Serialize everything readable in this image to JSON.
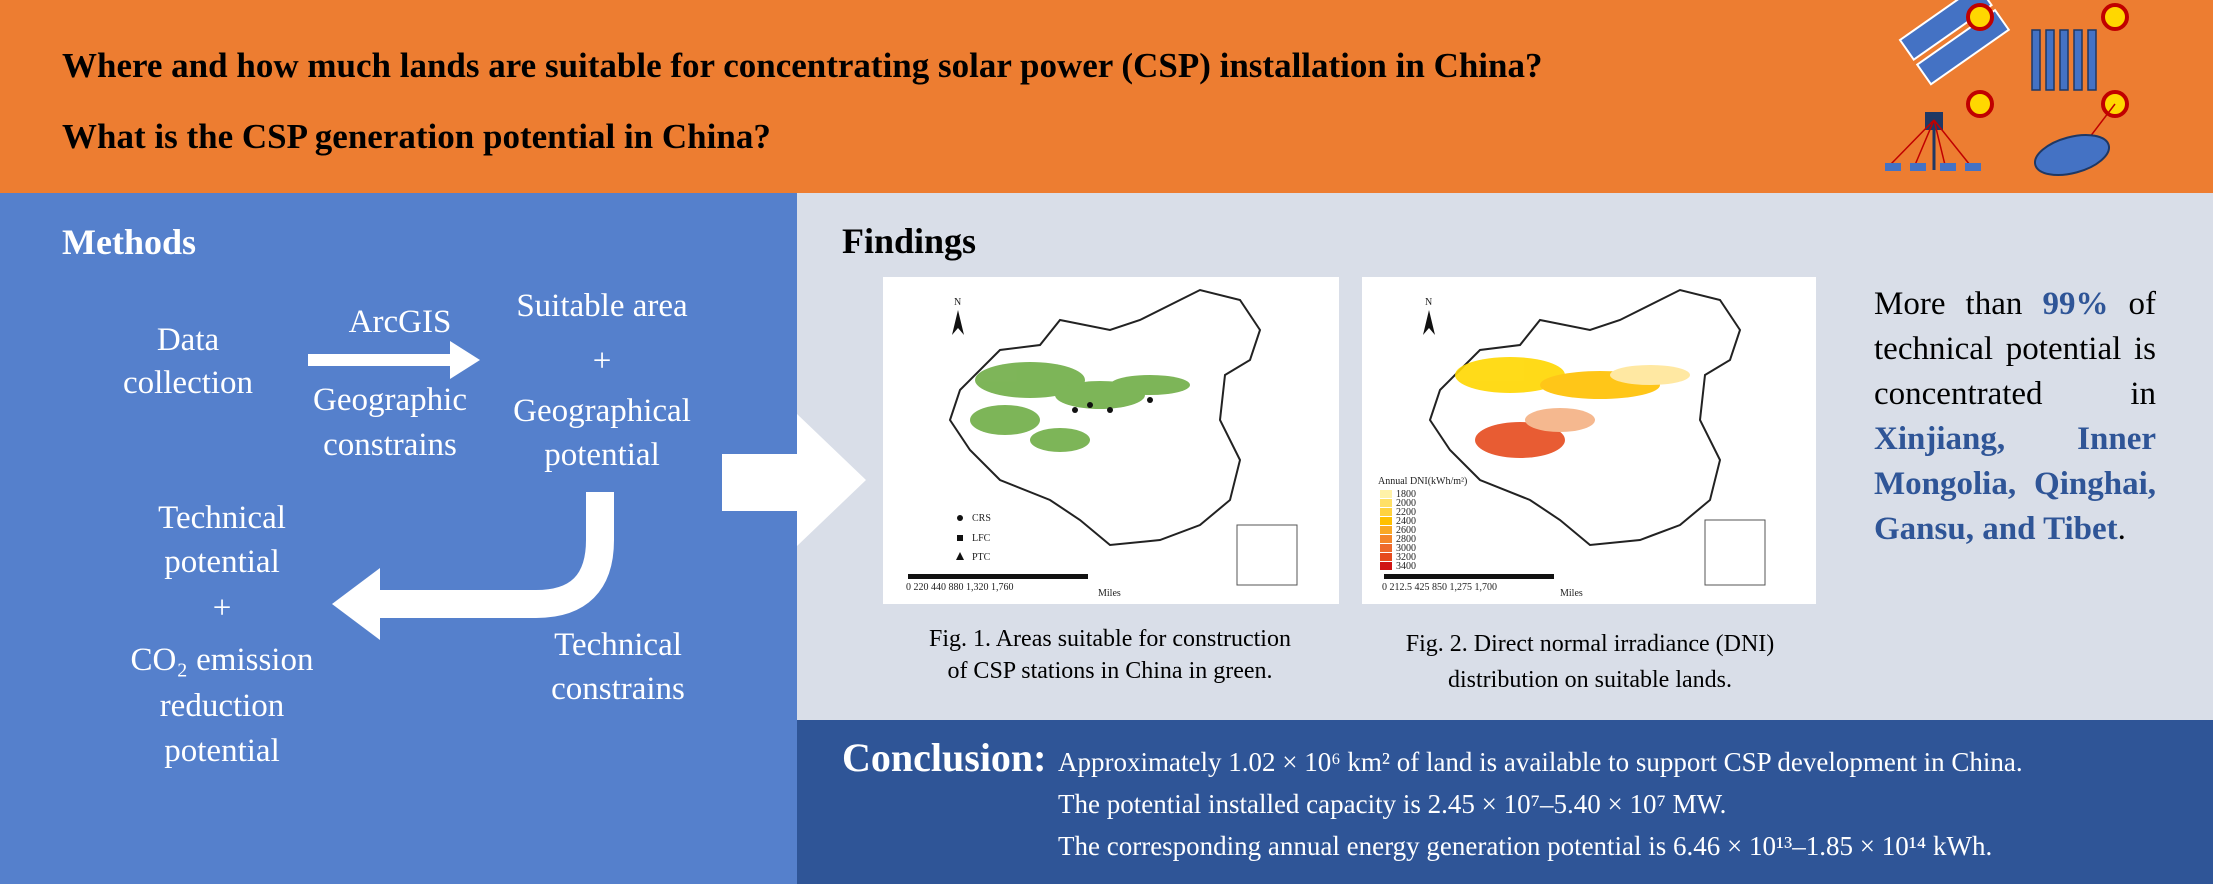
{
  "header": {
    "questions": [
      "Where and how much lands are suitable for concentrating solar power (CSP) installation in China?",
      "What is the CSP generation potential in China?"
    ]
  },
  "methods": {
    "title": "Methods",
    "data_collection": [
      "Data",
      "collection"
    ],
    "arcgis": "ArcGIS",
    "geographic_constrains": [
      "Geographic",
      "constrains"
    ],
    "suitable_area": "Suitable area",
    "plus_1": "+",
    "geographical_potential": [
      "Geographical",
      "potential"
    ],
    "technical_constrains": [
      "Technical",
      "constrains"
    ],
    "technical_potential": [
      "Technical",
      "potential"
    ],
    "plus_2": "+",
    "co2_potential": [
      "CO₂ emission",
      "reduction",
      "potential"
    ]
  },
  "findings": {
    "title": "Findings",
    "figure_1": {
      "north": "N",
      "legend": [
        "CRS",
        "LFC",
        "PTC"
      ],
      "scale": "0   220  440       880      1,320     1,760",
      "scale_unit": "Miles",
      "caption": [
        "Fig. 1. Areas suitable for construction",
        "of CSP stations in China in green."
      ]
    },
    "figure_2": {
      "north": "N",
      "legend_title": "Annual DNI(kWh/m²)",
      "legend": [
        "1800",
        "2000",
        "2200",
        "2400",
        "2600",
        "2800",
        "3000",
        "3200",
        "3400"
      ],
      "scale": "0  212.5 425      850      1,275     1,700",
      "scale_unit": "Miles",
      "caption": [
        "Fig. 2. Direct normal irradiance (DNI)",
        "distribution on suitable lands."
      ]
    },
    "statement": {
      "before": "More than",
      "highlight": "99%",
      "after": "of technical potential is concentrated in",
      "regions": "Xinjiang, Inner Mongolia, Qinghai, Gansu, and Tibet",
      "end": "."
    }
  },
  "conclusion": {
    "title": "Conclusion:",
    "lines": [
      "Approximately 1.02 × 10⁶ km² of land is available to support CSP development in China.",
      "The potential installed capacity is 2.45 × 10⁷–5.40 × 10⁷ MW.",
      "The corresponding annual energy generation potential is 6.46 × 10¹³–1.85 × 10¹⁴ kWh."
    ]
  }
}
